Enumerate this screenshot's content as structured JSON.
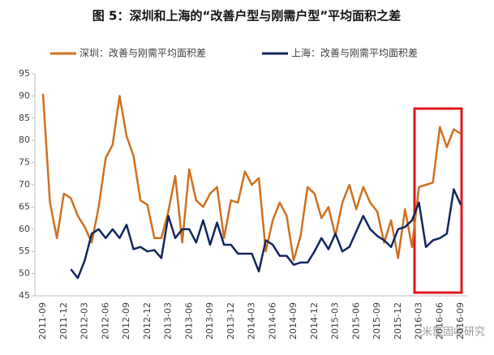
{
  "chart_data": {
    "type": "line",
    "title": "图 5：深圳和上海的“改善户型与刚需户型”平均面积之差",
    "watermark": "米筐固收研究",
    "categories": [
      "2011-09",
      null,
      null,
      "2011-12",
      null,
      null,
      "2012-03",
      null,
      null,
      "2012-06",
      null,
      null,
      "2012-09",
      null,
      null,
      "2012-12",
      null,
      null,
      "2013-03",
      null,
      null,
      "2013-06",
      null,
      null,
      "2013-09",
      null,
      null,
      "2013-12",
      null,
      null,
      "2014-03",
      null,
      null,
      "2014-06",
      null,
      null,
      "2014-09",
      null,
      null,
      "2014-12",
      null,
      null,
      "2015-03",
      null,
      null,
      "2015-06",
      null,
      null,
      "2015-09",
      null,
      null,
      "2015-12",
      null,
      null,
      "2016-03",
      null,
      null,
      "2016-06",
      null,
      null,
      "2016-09"
    ],
    "series": [
      {
        "name": "深圳：改善与刚需平均面积差",
        "color": "#d0701f",
        "values": [
          90.5,
          66,
          58,
          68,
          67,
          63,
          60.5,
          57,
          65,
          76,
          79,
          90,
          81,
          76.5,
          66.5,
          65.5,
          58,
          58,
          64,
          72,
          57,
          73.5,
          66.5,
          65,
          68,
          69.5,
          58,
          66.5,
          66,
          73,
          70,
          71.5,
          55,
          62,
          66,
          63,
          53,
          58.5,
          69.5,
          68,
          62.5,
          65,
          58.5,
          66,
          70,
          64.5,
          69.5,
          66,
          64,
          57,
          62,
          53.5,
          64.5,
          56,
          69.5,
          70,
          70.5,
          83,
          78.5,
          82.5,
          81.5
        ]
      },
      {
        "name": "上海：改善与刚需平均面积差",
        "color": "#13265e",
        "values": [
          null,
          null,
          null,
          null,
          51,
          49,
          53,
          59,
          60,
          58,
          60,
          58,
          61,
          55.5,
          56,
          55,
          55.3,
          53.5,
          63,
          58,
          60,
          60,
          57,
          62,
          56.5,
          61.5,
          56.5,
          56.5,
          54.5,
          54.5,
          54.5,
          50.5,
          57.5,
          56.5,
          54,
          54,
          52,
          52.5,
          52.5,
          55,
          58,
          55.5,
          59,
          55,
          56,
          59.5,
          63,
          60,
          58.5,
          57.5,
          56,
          60,
          60.5,
          62,
          66,
          56,
          57.5,
          58,
          59,
          69,
          65.5
        ]
      }
    ],
    "ylim": [
      45,
      95
    ],
    "yticks": [
      45,
      50,
      55,
      60,
      65,
      70,
      75,
      80,
      85,
      90,
      95
    ],
    "grid": false
  }
}
